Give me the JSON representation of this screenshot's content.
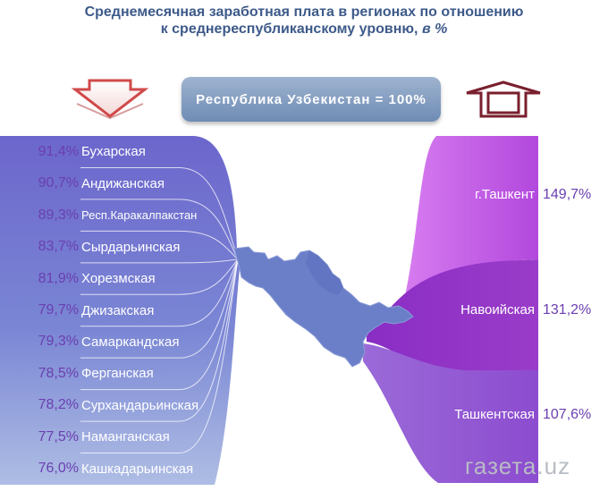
{
  "header": {
    "title_line1": "Среднемесячная заработная плата в регионах по отношению",
    "title_line2": "к среднереспубликанскому уровню,",
    "title_unit": "в %"
  },
  "banner": {
    "text": "Республика Узбекистан = 100%"
  },
  "watermark": {
    "text": "газета.uz"
  },
  "colors": {
    "left_band_top": "#6c66cc",
    "left_band_bottom": "#a9b9e2",
    "right_band_1": "#c45be6",
    "right_band_2": "#9a3fc9",
    "right_band_3": "#8e52cf",
    "map": "#6b7fc9",
    "value_text": "#6a3fb0"
  },
  "icons": {
    "down_arrow": "down-arrow-icon",
    "up_arrow": "up-arrow-icon"
  },
  "chart_data": {
    "type": "bar",
    "title": "Среднемесячная заработная плата в регионах по отношению к среднереспубликанскому уровню, в %",
    "baseline": "Республика Узбекистан = 100%",
    "below_average": [
      {
        "name": "Бухарская",
        "value": 91.4,
        "label": "91,4%"
      },
      {
        "name": "Андижанская",
        "value": 90.7,
        "label": "90,7%"
      },
      {
        "name": "Респ.Каракалпакстан",
        "value": 89.3,
        "label": "89,3%"
      },
      {
        "name": "Сырдарьинская",
        "value": 83.7,
        "label": "83,7%"
      },
      {
        "name": "Хорезмская",
        "value": 81.9,
        "label": "81,9%"
      },
      {
        "name": "Джизакская",
        "value": 79.7,
        "label": "79,7%"
      },
      {
        "name": "Самаркандская",
        "value": 79.3,
        "label": "79,3%"
      },
      {
        "name": "Ферганская",
        "value": 78.5,
        "label": "78,5%"
      },
      {
        "name": "Сурхандарьинская",
        "value": 78.2,
        "label": "78,2%"
      },
      {
        "name": "Наманганская",
        "value": 77.5,
        "label": "77,5%"
      },
      {
        "name": "Кашкадарьинская",
        "value": 76.0,
        "label": "76,0%"
      }
    ],
    "above_average": [
      {
        "name": "г.Ташкент",
        "value": 149.7,
        "label": "149,7%"
      },
      {
        "name": "Навоийская",
        "value": 131.2,
        "label": "131,2%"
      },
      {
        "name": "Ташкентская",
        "value": 107.6,
        "label": "107,6%"
      }
    ]
  }
}
